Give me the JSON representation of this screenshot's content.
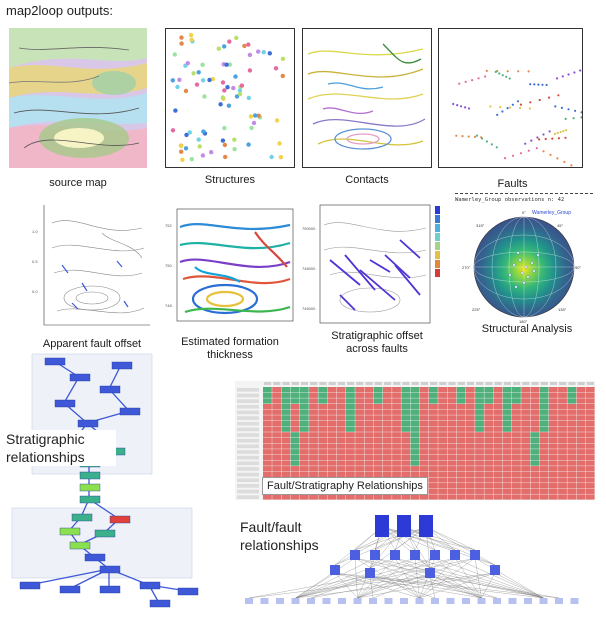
{
  "header": {
    "title": "map2loop outputs:"
  },
  "panels": {
    "source_map": {
      "caption": "source map"
    },
    "structures": {
      "caption": "Structures"
    },
    "contacts": {
      "caption": "Contacts"
    },
    "faults": {
      "caption": "Faults"
    },
    "apparent_offset": {
      "caption": "Apparent fault offset"
    },
    "thickness": {
      "caption": "Estimated formation thickness"
    },
    "strat_offset": {
      "caption": "Stratigraphic offset across faults"
    },
    "structural": {
      "caption": "Structural Analysis",
      "header": "Wamerley_Group observations n: 42",
      "legend": "Wamerley_Group"
    },
    "strat_relationships": {
      "caption": "Stratigraphic relationships"
    },
    "fault_strat": {
      "caption": "Fault/Stratigraphy Relationships"
    },
    "fault_fault": {
      "caption": "Fault/fault relationships"
    }
  },
  "colors": {
    "table_red": "#e36d6a",
    "table_green": "#4fb07b",
    "flow_blue": "#3e58d8",
    "flow_green": "#3bb08a",
    "flow_lime": "#8be04e",
    "flow_red": "#e0413a"
  }
}
